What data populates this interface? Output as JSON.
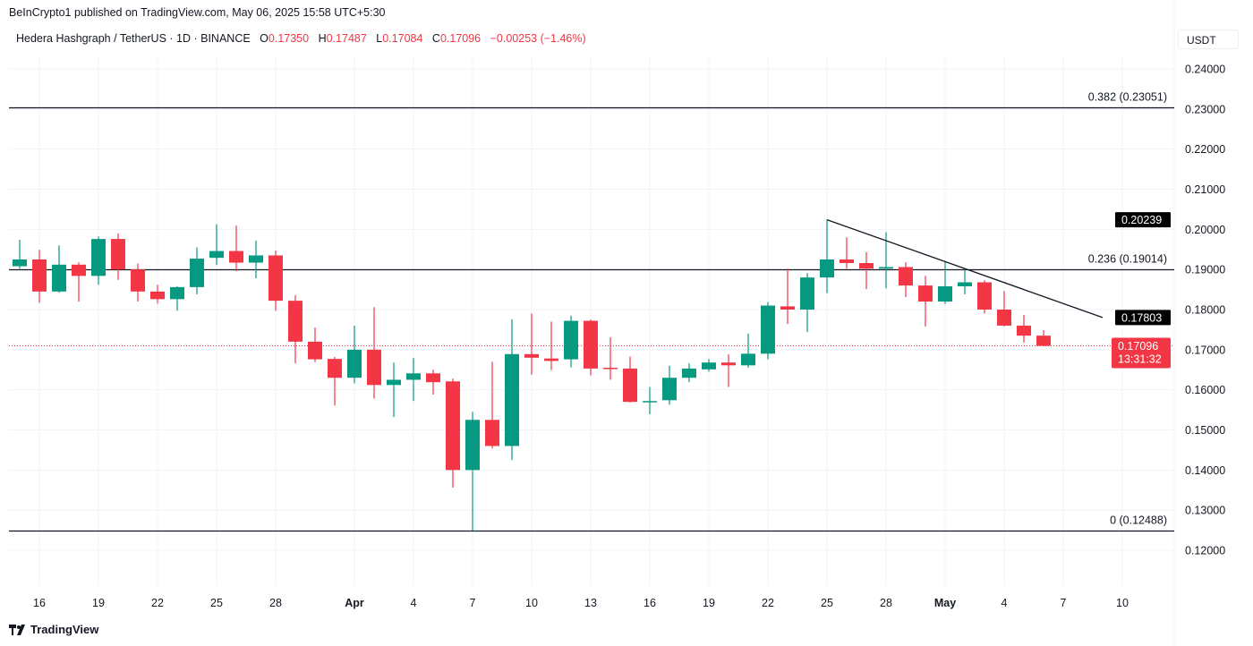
{
  "header": {
    "published": "BeInCrypto1 published on TradingView.com, May 06, 2025 15:58 UTC+5:30",
    "symbol": "Hedera Hashgraph / TetherUS · 1D · BINANCE",
    "ohlc": {
      "o_label": "O",
      "o": "0.17350",
      "h_label": "H",
      "h": "0.17487",
      "l_label": "L",
      "l": "0.17084",
      "c_label": "C",
      "c": "0.17096",
      "change": "−0.00253 (−1.46%)"
    },
    "currency": "USDT"
  },
  "footer": {
    "brand": "TradingView"
  },
  "colors": {
    "up": "#089981",
    "down": "#f23645",
    "line": "#131722",
    "grid": "#f0f3fa"
  },
  "chart_data": {
    "type": "candlestick",
    "yticks": [
      "0.24000",
      "0.23000",
      "0.22000",
      "0.21000",
      "0.20000",
      "0.19000",
      "0.18000",
      "0.17000",
      "0.16000",
      "0.15000",
      "0.14000",
      "0.13000",
      "0.12000"
    ],
    "ylim": [
      0.11,
      0.25
    ],
    "xticks": [
      {
        "label": "16",
        "date": "2025-03-16"
      },
      {
        "label": "19",
        "date": "2025-03-19"
      },
      {
        "label": "22",
        "date": "2025-03-22"
      },
      {
        "label": "25",
        "date": "2025-03-25"
      },
      {
        "label": "28",
        "date": "2025-03-28"
      },
      {
        "label": "Apr",
        "date": "2025-04-01",
        "bold": true
      },
      {
        "label": "4",
        "date": "2025-04-04"
      },
      {
        "label": "7",
        "date": "2025-04-07"
      },
      {
        "label": "10",
        "date": "2025-04-10"
      },
      {
        "label": "13",
        "date": "2025-04-13"
      },
      {
        "label": "16",
        "date": "2025-04-16"
      },
      {
        "label": "19",
        "date": "2025-04-19"
      },
      {
        "label": "22",
        "date": "2025-04-22"
      },
      {
        "label": "25",
        "date": "2025-04-25"
      },
      {
        "label": "28",
        "date": "2025-04-28"
      },
      {
        "label": "May",
        "date": "2025-05-01",
        "bold": true
      },
      {
        "label": "4",
        "date": "2025-05-04"
      },
      {
        "label": "7",
        "date": "2025-05-07"
      },
      {
        "label": "10",
        "date": "2025-05-10"
      }
    ],
    "candles_columns": [
      "date",
      "open",
      "high",
      "low",
      "close"
    ],
    "candles": [
      [
        "2025-03-15",
        0.1908,
        0.1974,
        0.1902,
        0.1925
      ],
      [
        "2025-03-16",
        0.1925,
        0.1949,
        0.1817,
        0.1845
      ],
      [
        "2025-03-17",
        0.1845,
        0.196,
        0.1842,
        0.1912
      ],
      [
        "2025-03-18",
        0.1912,
        0.1918,
        0.182,
        0.1884
      ],
      [
        "2025-03-19",
        0.1884,
        0.1982,
        0.1862,
        0.1976
      ],
      [
        "2025-03-20",
        0.1976,
        0.199,
        0.1874,
        0.19
      ],
      [
        "2025-03-21",
        0.19,
        0.1915,
        0.182,
        0.1845
      ],
      [
        "2025-03-22",
        0.1845,
        0.1862,
        0.1815,
        0.1826
      ],
      [
        "2025-03-23",
        0.1826,
        0.1858,
        0.1797,
        0.1856
      ],
      [
        "2025-03-24",
        0.1856,
        0.1955,
        0.1838,
        0.1927
      ],
      [
        "2025-03-25",
        0.1929,
        0.2013,
        0.1911,
        0.1946
      ],
      [
        "2025-03-26",
        0.1946,
        0.2009,
        0.1896,
        0.1917
      ],
      [
        "2025-03-27",
        0.1917,
        0.1972,
        0.1878,
        0.1935
      ],
      [
        "2025-03-28",
        0.1935,
        0.1947,
        0.1797,
        0.1822
      ],
      [
        "2025-03-29",
        0.1822,
        0.1836,
        0.1666,
        0.172
      ],
      [
        "2025-03-30",
        0.172,
        0.1755,
        0.1669,
        0.1676
      ],
      [
        "2025-03-31",
        0.1677,
        0.1682,
        0.1561,
        0.163
      ],
      [
        "2025-04-01",
        0.163,
        0.176,
        0.1616,
        0.17
      ],
      [
        "2025-04-02",
        0.17,
        0.1806,
        0.1578,
        0.1612
      ],
      [
        "2025-04-03",
        0.1612,
        0.1668,
        0.1532,
        0.1625
      ],
      [
        "2025-04-04",
        0.1625,
        0.1679,
        0.1572,
        0.1641
      ],
      [
        "2025-04-05",
        0.1641,
        0.165,
        0.1588,
        0.1619
      ],
      [
        "2025-04-06",
        0.1621,
        0.1628,
        0.1356,
        0.14
      ],
      [
        "2025-04-07",
        0.14,
        0.1545,
        0.12488,
        0.1525
      ],
      [
        "2025-04-08",
        0.1525,
        0.167,
        0.1454,
        0.146
      ],
      [
        "2025-04-09",
        0.146,
        0.1776,
        0.1425,
        0.1689
      ],
      [
        "2025-04-10",
        0.1689,
        0.179,
        0.1638,
        0.168
      ],
      [
        "2025-04-11",
        0.1678,
        0.177,
        0.1649,
        0.1672
      ],
      [
        "2025-04-12",
        0.1676,
        0.1785,
        0.1656,
        0.1772
      ],
      [
        "2025-04-13",
        0.1772,
        0.1775,
        0.1636,
        0.1653
      ],
      [
        "2025-04-14",
        0.1655,
        0.1731,
        0.1625,
        0.1653
      ],
      [
        "2025-04-15",
        0.1653,
        0.1683,
        0.1568,
        0.157
      ],
      [
        "2025-04-16",
        0.157,
        0.1607,
        0.1539,
        0.1572
      ],
      [
        "2025-04-17",
        0.1574,
        0.166,
        0.1563,
        0.163
      ],
      [
        "2025-04-18",
        0.163,
        0.1666,
        0.1619,
        0.1653
      ],
      [
        "2025-04-19",
        0.1651,
        0.1677,
        0.1645,
        0.1668
      ],
      [
        "2025-04-20",
        0.1668,
        0.1688,
        0.1607,
        0.1661
      ],
      [
        "2025-04-21",
        0.1661,
        0.174,
        0.1655,
        0.169
      ],
      [
        "2025-04-22",
        0.169,
        0.1819,
        0.1676,
        0.181
      ],
      [
        "2025-04-23",
        0.1808,
        0.1902,
        0.1764,
        0.18
      ],
      [
        "2025-04-24",
        0.18,
        0.1891,
        0.1744,
        0.188
      ],
      [
        "2025-04-25",
        0.188,
        0.20239,
        0.1841,
        0.1925
      ],
      [
        "2025-04-26",
        0.1925,
        0.198,
        0.1902,
        0.1916
      ],
      [
        "2025-04-27",
        0.1916,
        0.1943,
        0.1851,
        0.1902
      ],
      [
        "2025-04-28",
        0.1902,
        0.1993,
        0.1853,
        0.1906
      ],
      [
        "2025-04-29",
        0.1906,
        0.1918,
        0.1831,
        0.186
      ],
      [
        "2025-04-30",
        0.186,
        0.1884,
        0.1758,
        0.182
      ],
      [
        "2025-05-01",
        0.182,
        0.192,
        0.1814,
        0.1858
      ],
      [
        "2025-05-02",
        0.1858,
        0.1902,
        0.1838,
        0.1868
      ],
      [
        "2025-05-03",
        0.1868,
        0.1873,
        0.179,
        0.18
      ],
      [
        "2025-05-04",
        0.18,
        0.1846,
        0.1758,
        0.176
      ],
      [
        "2025-05-05",
        0.176,
        0.1787,
        0.1718,
        0.1735
      ],
      [
        "2025-05-06",
        0.1735,
        0.17487,
        0.17084,
        0.17096
      ]
    ],
    "fib_levels": [
      {
        "ratio": "0.382",
        "price": 0.23051,
        "label": "0.382 (0.23051)"
      },
      {
        "ratio": "0.236",
        "price": 0.19014,
        "label": "0.236 (0.19014)"
      },
      {
        "ratio": "0",
        "price": 0.12488,
        "label": "0 (0.12488)"
      }
    ],
    "trendline": {
      "start": {
        "date": "2025-04-25",
        "price": 0.20239
      },
      "end": {
        "date": "2025-05-09",
        "price": 0.17803
      }
    },
    "price_badges": [
      {
        "text": "0.20239",
        "price": 0.20239,
        "color": "#000000"
      },
      {
        "text": "0.17803",
        "price": 0.17803,
        "color": "#000000"
      }
    ],
    "last_price": {
      "price": 0.17096,
      "text": "0.17096",
      "countdown": "13:31:32",
      "color": "#f23645"
    }
  }
}
